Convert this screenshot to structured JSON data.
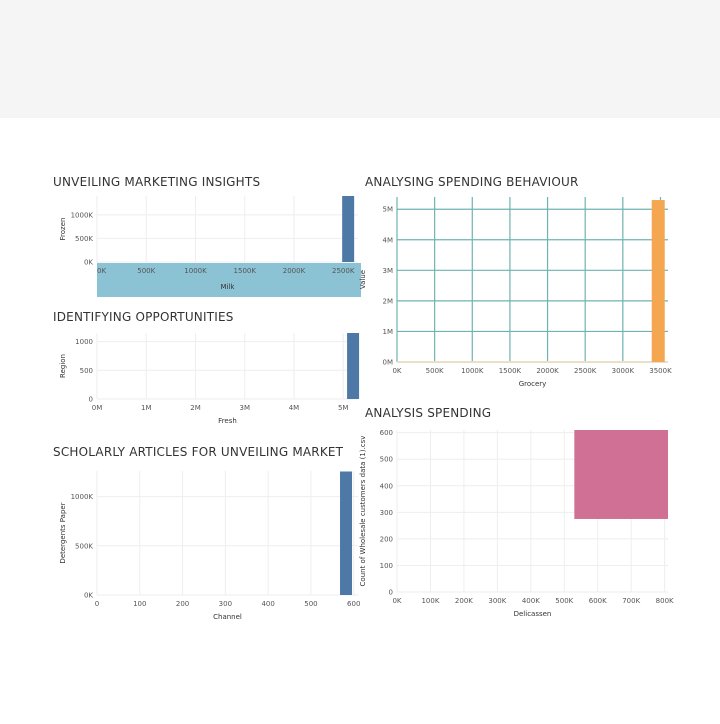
{
  "charts": [
    {
      "id": "marketing",
      "title": "UNVEILING MARKETING INSIGHTS",
      "type": "bar",
      "xlabel": "Milk",
      "ylabel": "Frozen",
      "x_ticks": [
        "0K",
        "500K",
        "1000K",
        "1500K",
        "2000K",
        "2500K"
      ],
      "y_ticks": [
        "0K",
        "500K",
        "1000K"
      ],
      "xlim": [
        0,
        2650
      ],
      "ylim": [
        0,
        1400
      ],
      "bars": [
        {
          "x": 2550,
          "value": 1400
        }
      ],
      "bar_color": "#4e79a7",
      "axis_band_color": "#8cc3d4",
      "grid": true
    },
    {
      "id": "opportunities",
      "title": "IDENTIFYING OPPORTUNITIES",
      "type": "bar",
      "xlabel": "Fresh",
      "ylabel": "Region",
      "x_ticks": [
        "0M",
        "1M",
        "2M",
        "3M",
        "4M",
        "5M"
      ],
      "y_ticks": [
        "0",
        "500",
        "1000"
      ],
      "xlim": [
        0,
        5.3
      ],
      "ylim": [
        0,
        1150
      ],
      "bars": [
        {
          "x": 5.2,
          "value": 1150
        }
      ],
      "bar_color": "#4e79a7",
      "grid": true
    },
    {
      "id": "scholarly",
      "title": "SCHOLARLY ARTICLES FOR UNVEILING MARKET",
      "type": "bar",
      "xlabel": "Channel",
      "ylabel": "Detergents Paper",
      "x_ticks": [
        "0",
        "100",
        "200",
        "300",
        "400",
        "500",
        "600"
      ],
      "y_ticks": [
        "0K",
        "500K",
        "1000K"
      ],
      "xlim": [
        0,
        610
      ],
      "ylim": [
        0,
        1260
      ],
      "bars": [
        {
          "x": 582,
          "value": 1255
        }
      ],
      "bar_color": "#4e79a7",
      "grid": true
    },
    {
      "id": "behaviour",
      "title": "ANALYSING SPENDING BEHAVIOUR",
      "type": "bar",
      "xlabel": "Grocery",
      "ylabel": "Value",
      "x_ticks": [
        "0K",
        "500K",
        "1000K",
        "1500K",
        "2000K",
        "2500K",
        "3000K",
        "3500K"
      ],
      "y_ticks": [
        "0M",
        "1M",
        "2M",
        "3M",
        "4M",
        "5M"
      ],
      "xlim": [
        0,
        3600
      ],
      "ylim": [
        0,
        5.4
      ],
      "bars": [
        {
          "x": 3470,
          "value": 5.3
        }
      ],
      "bar_color": "#f4a650",
      "grid_color": "#6fb3b0",
      "baseline_color": "#e8e0c8",
      "grid": true
    },
    {
      "id": "spending",
      "title": "ANALYSIS SPENDING",
      "type": "area",
      "xlabel": "Delicassen",
      "ylabel": "Count of Wholesale customers data (1).csv",
      "x_ticks": [
        "0K",
        "100K",
        "200K",
        "300K",
        "400K",
        "500K",
        "600K",
        "700K",
        "800K"
      ],
      "y_ticks": [
        "0",
        "100",
        "200",
        "300",
        "400",
        "500",
        "600"
      ],
      "xlim": [
        0,
        810
      ],
      "ylim": [
        0,
        610
      ],
      "rect": {
        "x0": 530,
        "x1": 810,
        "y0": 275,
        "y1": 610
      },
      "rect_color": "#d07095",
      "grid": true
    }
  ]
}
